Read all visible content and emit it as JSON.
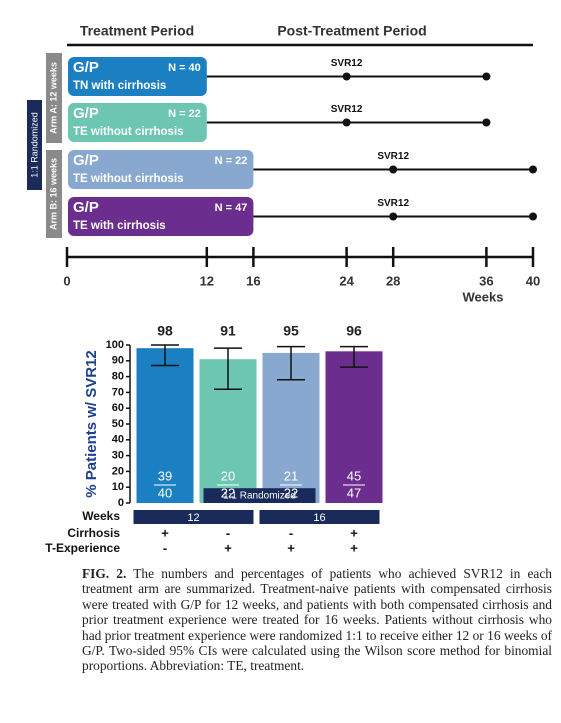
{
  "diagram": {
    "header": {
      "treatment": "Treatment Period",
      "post": "Post-Treatment Period"
    },
    "randomized_label": "1:1 Randomized",
    "arms": [
      {
        "label": "Arm A: 12 weeks"
      },
      {
        "label": "Arm B: 16 weeks"
      }
    ],
    "rows": [
      {
        "drug": "G/P",
        "n": "N = 40",
        "population": "TN with cirrhosis",
        "end": 12,
        "svr_label": "SVR12",
        "svr": 24,
        "last": 36,
        "color": "#1b80c2"
      },
      {
        "drug": "G/P",
        "n": "N = 22",
        "population": "TE without cirrhosis",
        "end": 12,
        "svr_label": "SVR12",
        "svr": 24,
        "last": 36,
        "color": "#6cc6b1"
      },
      {
        "drug": "G/P",
        "n": "N = 22",
        "population": "TE without cirrhosis",
        "end": 16,
        "svr_label": "SVR12",
        "svr": 28,
        "last": 40,
        "color": "#88a8d0"
      },
      {
        "drug": "G/P",
        "n": "N = 47",
        "population": "TE with cirrhosis",
        "end": 16,
        "svr_label": "SVR12",
        "svr": 28,
        "last": 40,
        "color": "#6b2d8e"
      }
    ],
    "xlim": [
      0,
      40
    ],
    "xticks": [
      0,
      12,
      16,
      24,
      28,
      36,
      40
    ],
    "x_label": "Weeks"
  },
  "chart_data": {
    "type": "bar",
    "y_label": "% Patients w/ SVR12",
    "values": [
      98,
      91,
      95,
      96
    ],
    "colors": [
      "#1b80c2",
      "#6cc6b1",
      "#88a8d0",
      "#6b2d8e"
    ],
    "error_low": [
      87,
      72,
      78,
      86
    ],
    "error_high": [
      100,
      98,
      99,
      99
    ],
    "numerators": [
      39,
      20,
      21,
      45
    ],
    "denominators": [
      40,
      22,
      22,
      47
    ],
    "randomized_label": "1:1 Randomized",
    "ylim": [
      0,
      100
    ],
    "yticks": [
      0,
      10,
      20,
      30,
      40,
      50,
      60,
      70,
      80,
      90,
      100
    ],
    "table": {
      "weeks": {
        "label": "Weeks",
        "groups": [
          12,
          16
        ]
      },
      "cirrhosis": {
        "label": "Cirrhosis",
        "values": [
          "+",
          "-",
          "-",
          "+"
        ]
      },
      "experience": {
        "label": "T-Experience",
        "values": [
          "-",
          "+",
          "+",
          "+"
        ]
      }
    }
  },
  "caption": {
    "label": "FIG. 2.",
    "text": "The numbers and percentages of patients who achieved SVR12 in each treatment arm are summarized. Treatment-naive patients with compensated cirrhosis were treated with G/P for 12 weeks, and patients with both compensated cirrhosis and prior treatment experience were treated for 16 weeks. Patients without cirrhosis who had prior treatment experience were randomized 1:1 to receive either 12 or 16 weeks of G/P. Two-sided 95% CIs were calculated using the Wilson score method for binomial proportions. Abbreviation: TE, treatment."
  }
}
